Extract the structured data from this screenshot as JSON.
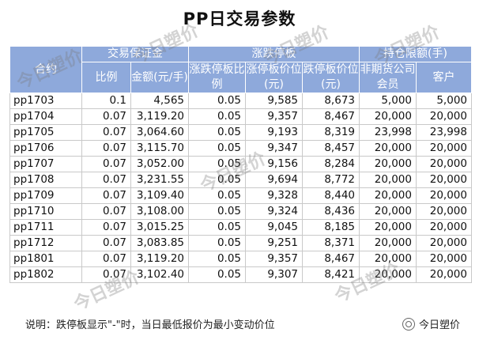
{
  "title": "PP日交易参数",
  "headers": {
    "contract": "合约",
    "margin_group": "交易保证金",
    "limit_group": "涨跌停板",
    "position_group": "持仓限额(手)",
    "ratio": "比例",
    "amount": "金额(元/手)",
    "limit_ratio": "涨跌停板比例",
    "up_price": "涨停板价位(元)",
    "down_price": "跌停板价位(元)",
    "non_futures_member": "非期货公司会员",
    "client": "客户"
  },
  "rows": [
    [
      "pp1703",
      "0.1",
      "4,565",
      "0.05",
      "9,585",
      "8,673",
      "5,000",
      "5,000"
    ],
    [
      "pp1704",
      "0.07",
      "3,119.20",
      "0.05",
      "9,357",
      "8,467",
      "20,000",
      "20,000"
    ],
    [
      "pp1705",
      "0.07",
      "3,064.60",
      "0.05",
      "9,193",
      "8,319",
      "23,998",
      "23,998"
    ],
    [
      "pp1706",
      "0.07",
      "3,115.70",
      "0.05",
      "9,347",
      "8,457",
      "20,000",
      "20,000"
    ],
    [
      "pp1707",
      "0.07",
      "3,052.00",
      "0.05",
      "9,156",
      "8,284",
      "20,000",
      "20,000"
    ],
    [
      "pp1708",
      "0.07",
      "3,231.55",
      "0.05",
      "9,694",
      "8,772",
      "20,000",
      "20,000"
    ],
    [
      "pp1709",
      "0.07",
      "3,109.40",
      "0.05",
      "9,328",
      "8,440",
      "20,000",
      "20,000"
    ],
    [
      "pp1710",
      "0.07",
      "3,108.00",
      "0.05",
      "9,324",
      "8,436",
      "20,000",
      "20,000"
    ],
    [
      "pp1711",
      "0.07",
      "3,015.25",
      "0.05",
      "9,045",
      "8,185",
      "20,000",
      "20,000"
    ],
    [
      "pp1712",
      "0.07",
      "3,083.85",
      "0.05",
      "9,251",
      "8,371",
      "20,000",
      "20,000"
    ],
    [
      "pp1801",
      "0.07",
      "3,119.20",
      "0.05",
      "9,357",
      "8,467",
      "20,000",
      "20,000"
    ],
    [
      "pp1802",
      "0.07",
      "3,102.40",
      "0.05",
      "9,307",
      "8,421",
      "20,000",
      "20,000"
    ]
  ],
  "note": "说明：跌停板显示\"-\"时，当日最低报价为最小变动价位",
  "brand": "今日塑价",
  "watermark": "今日塑价",
  "colors": {
    "header_bg": "#8ea9db",
    "header_text": "#ffffff",
    "grid": "#c9c9c9"
  },
  "icons": [
    "wechat-logo-icon"
  ]
}
